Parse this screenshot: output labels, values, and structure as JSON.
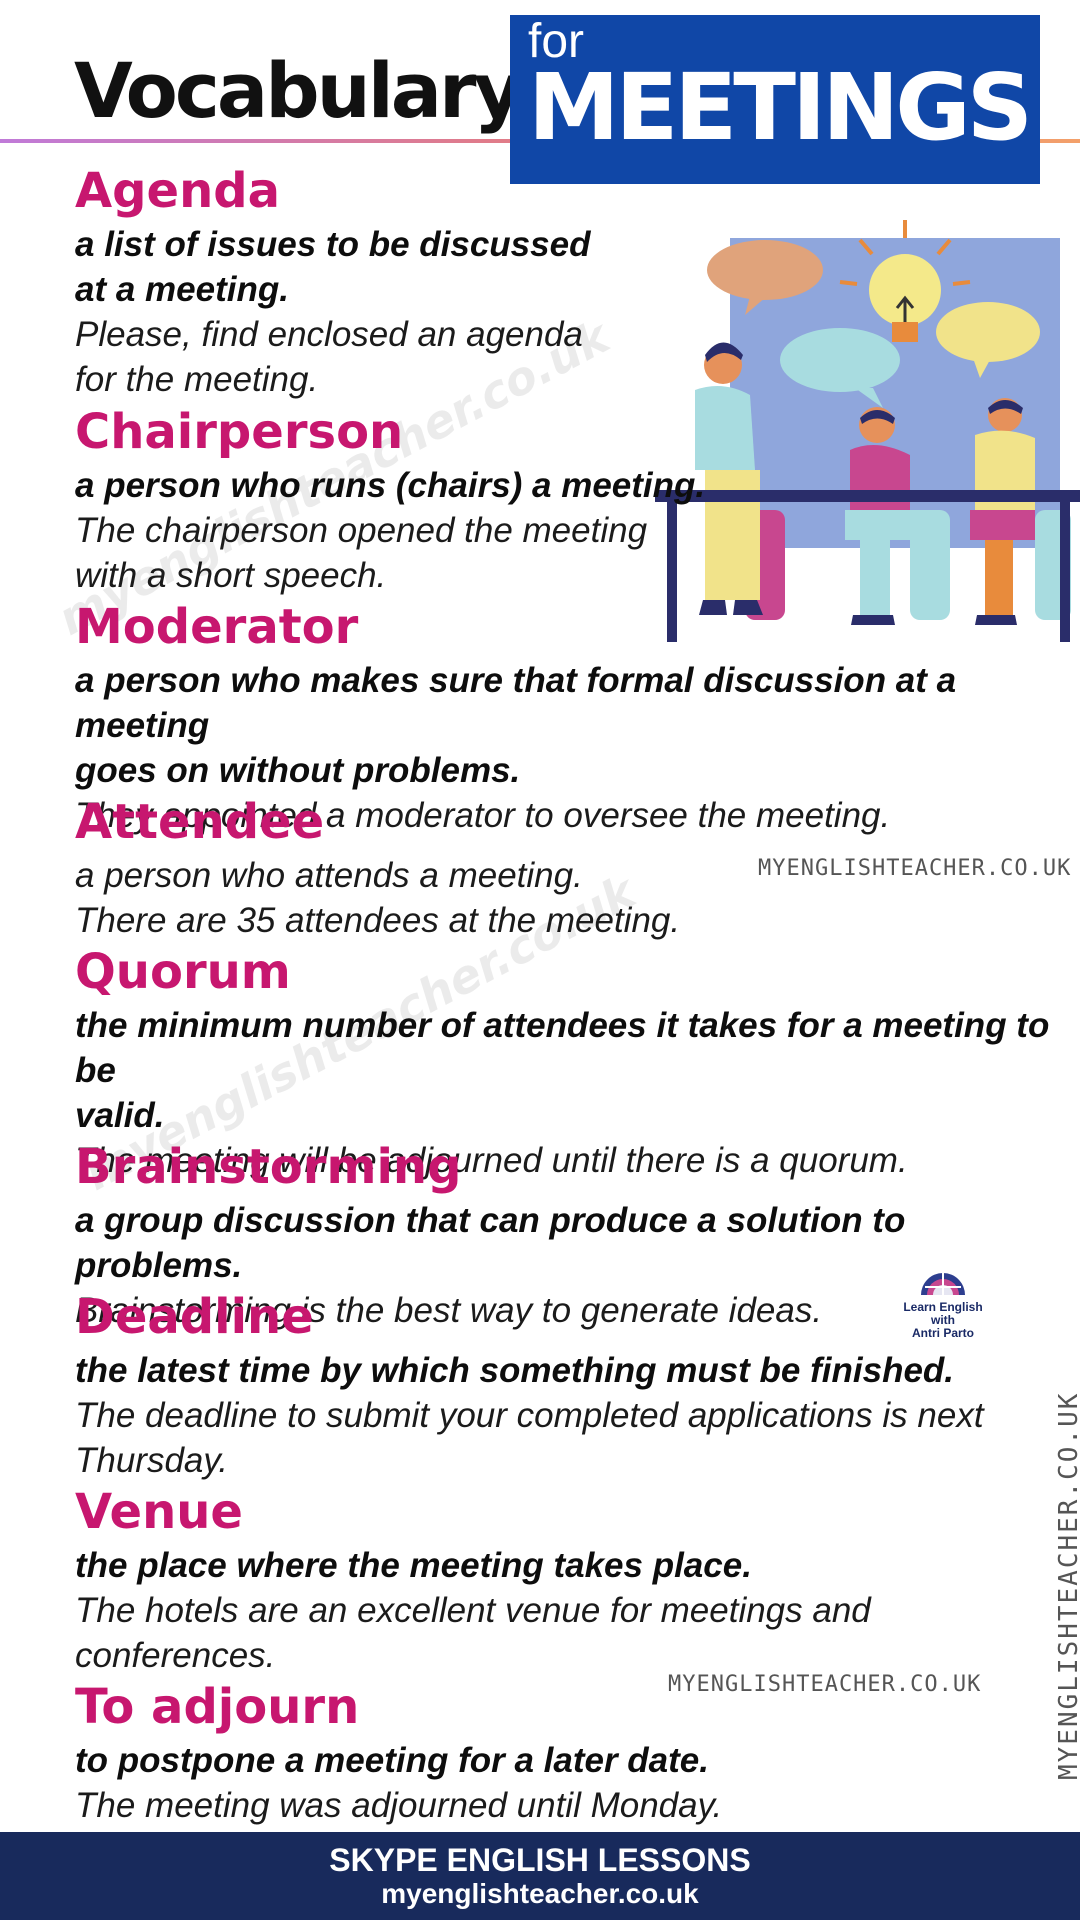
{
  "header": {
    "title_left": "Vocabulary",
    "title_small": "for",
    "title_big": "MEETINGS"
  },
  "entries": [
    {
      "term": "Agenda",
      "definition_lines": [
        "a list of issues to be discussed",
        "at a meeting."
      ],
      "example_lines": [
        "Please, find enclosed an agenda",
        "for the meeting."
      ]
    },
    {
      "term": "Chairperson",
      "definition_lines": [
        "a person who runs (chairs) a meeting."
      ],
      "example_lines": [
        "The chairperson opened the meeting",
        "with a short speech."
      ]
    },
    {
      "term": "Moderator",
      "definition_lines": [
        "a person who makes sure that formal discussion at a meeting",
        "goes on without problems."
      ],
      "example_lines": [
        "They appointed a moderator to oversee the meeting."
      ]
    },
    {
      "term": "Attendee",
      "definition_lines": [
        "a person who attends a meeting."
      ],
      "example_lines": [
        "There are 35 attendees at the meeting."
      ]
    },
    {
      "term": "Quorum",
      "definition_lines": [
        "the minimum number of attendees it takes for a meeting to be",
        "valid."
      ],
      "example_lines": [
        "The meeting will be adjourned until there is a quorum."
      ]
    },
    {
      "term": "Brainstorming",
      "definition_lines": [
        "a group discussion that can produce a solution to problems."
      ],
      "example_lines": [
        "Brainstorming is the best way to generate ideas."
      ]
    },
    {
      "term": "Deadline",
      "definition_lines": [
        "the latest time by which something must be finished."
      ],
      "example_lines": [
        "The deadline to submit your completed applications is next",
        "Thursday."
      ]
    },
    {
      "term": "Venue",
      "definition_lines": [
        "the place where the meeting takes place."
      ],
      "example_lines": [
        "The hotels are an excellent venue for meetings and",
        "conferences."
      ]
    },
    {
      "term": "To adjourn",
      "definition_lines": [
        "to postpone  a meeting for a later date."
      ],
      "example_lines": [
        "The meeting was adjourned until Monday."
      ]
    }
  ],
  "watermarks": {
    "diagonal": "myenglishteacher.co.uk",
    "small": "MYENGLISHTEACHER.CO.UK"
  },
  "logo": {
    "line1": "Learn English",
    "line2": "with",
    "line3": "Antri Parto"
  },
  "footer": {
    "line1": "SKYPE ENGLISH LESSONS",
    "line2": "myenglishteacher.co.uk"
  },
  "colors": {
    "term": "#c7176f",
    "header_box": "#1047a7",
    "footer_bg": "#182a5c"
  },
  "icons": [
    "meeting-illustration",
    "lightbulb-icon",
    "speech-bubble-icon",
    "globe-logo-icon"
  ]
}
